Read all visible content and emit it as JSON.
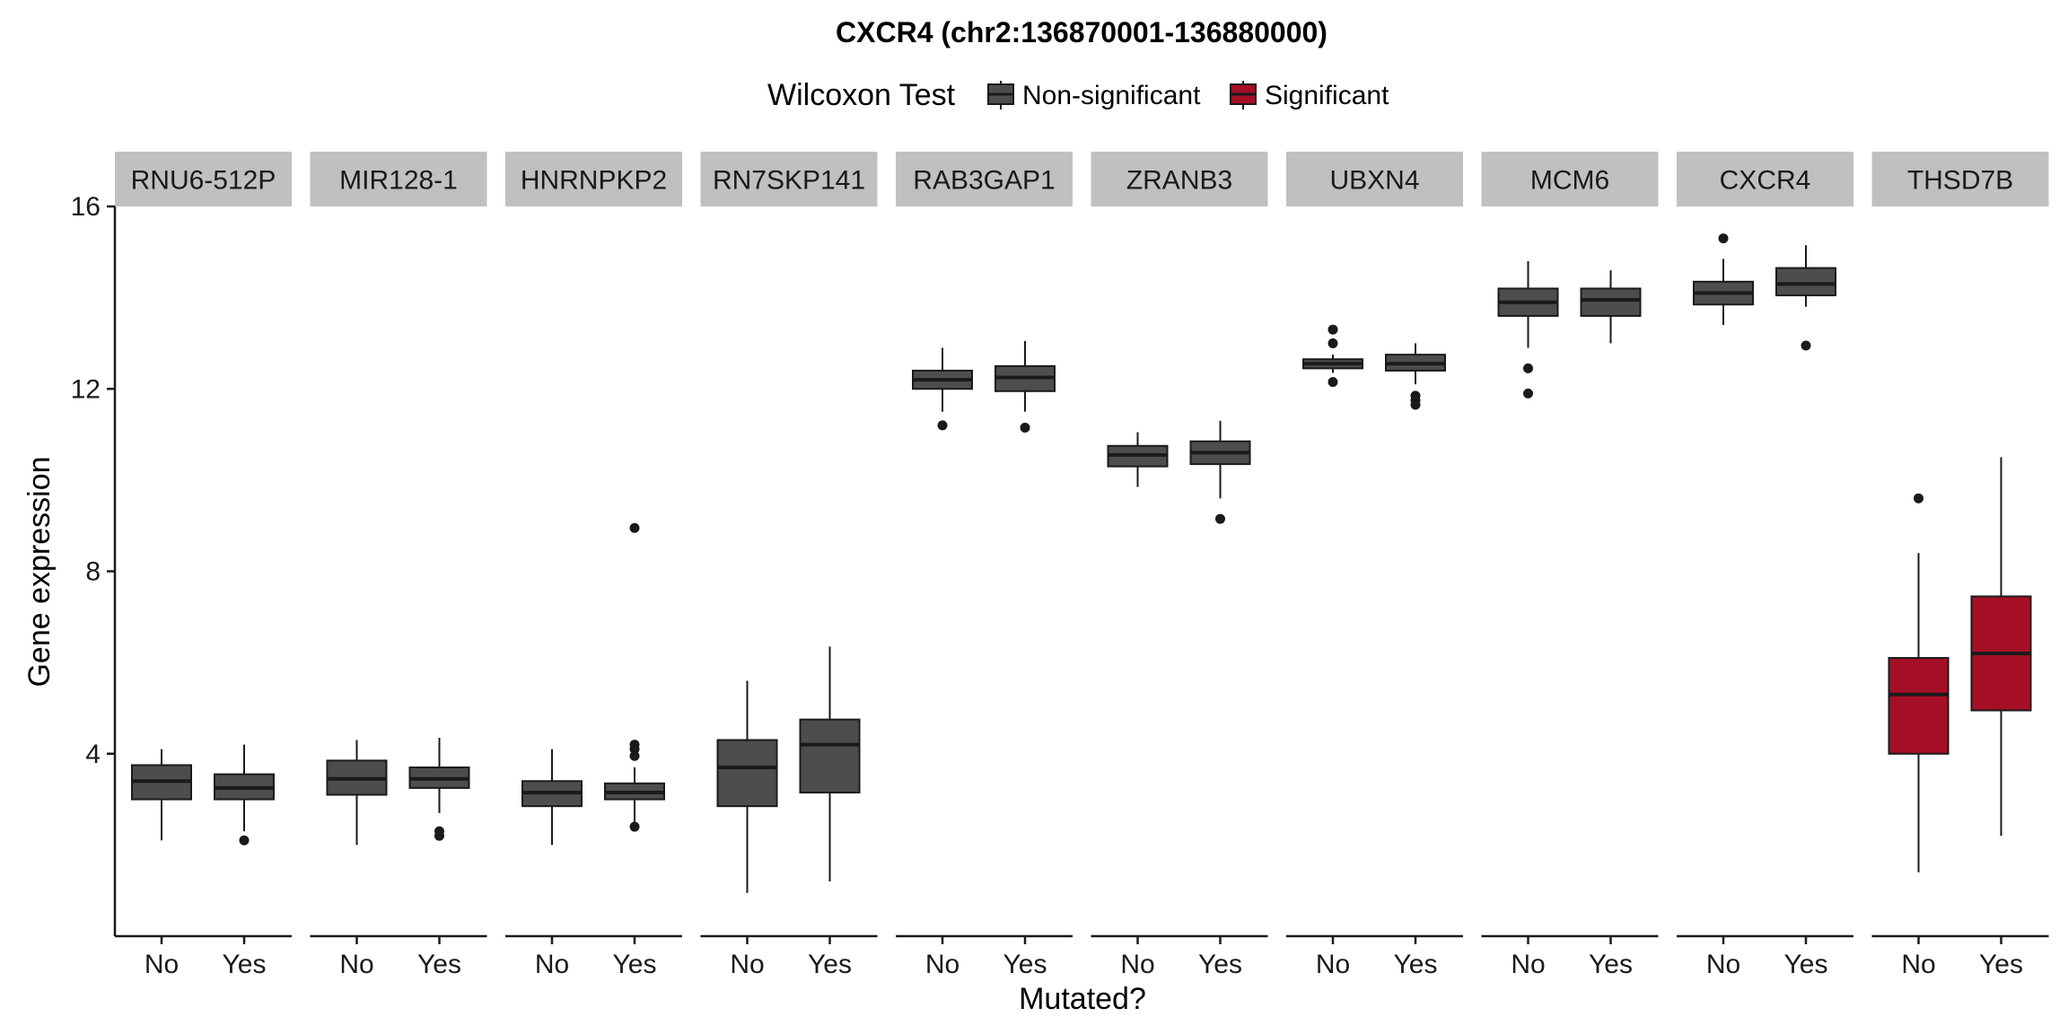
{
  "chart_data": {
    "type": "boxplot",
    "title": "CXCR4 (chr2:136870001-136880000)",
    "xlabel": "Mutated?",
    "ylabel": "Gene expression",
    "ylim": [
      0.0,
      16.0
    ],
    "yticks": [
      4,
      8,
      12,
      16
    ],
    "categories": [
      "No",
      "Yes"
    ],
    "legend": {
      "title": "Wilcoxon Test",
      "position": "top",
      "entries": [
        {
          "label": "Non-significant",
          "color": "#4d4d4d"
        },
        {
          "label": "Significant",
          "color": "#a50f26"
        }
      ]
    },
    "colors": {
      "strip_bg": "#c0c0c0",
      "box_stroke": "#1a1a1a",
      "axis": "#1a1a1a",
      "background": "#ffffff"
    },
    "facets": [
      {
        "gene": "RNU6-512P",
        "significant": false,
        "groups": [
          {
            "group": "No",
            "min": 2.1,
            "q1": 3.0,
            "median": 3.4,
            "q3": 3.75,
            "max": 4.1,
            "outliers": []
          },
          {
            "group": "Yes",
            "min": 2.3,
            "q1": 3.0,
            "median": 3.25,
            "q3": 3.55,
            "max": 4.2,
            "outliers": [
              2.1
            ]
          }
        ]
      },
      {
        "gene": "MIR128-1",
        "significant": false,
        "groups": [
          {
            "group": "No",
            "min": 2.0,
            "q1": 3.1,
            "median": 3.45,
            "q3": 3.85,
            "max": 4.3,
            "outliers": []
          },
          {
            "group": "Yes",
            "min": 2.7,
            "q1": 3.25,
            "median": 3.45,
            "q3": 3.7,
            "max": 4.35,
            "outliers": [
              2.3,
              2.2
            ]
          }
        ]
      },
      {
        "gene": "HNRNPKP2",
        "significant": false,
        "groups": [
          {
            "group": "No",
            "min": 2.0,
            "q1": 2.85,
            "median": 3.15,
            "q3": 3.4,
            "max": 4.1,
            "outliers": []
          },
          {
            "group": "Yes",
            "min": 2.5,
            "q1": 3.0,
            "median": 3.15,
            "q3": 3.35,
            "max": 3.7,
            "outliers": [
              8.95,
              4.2,
              4.1,
              3.95,
              2.4
            ]
          }
        ]
      },
      {
        "gene": "RN7SKP141",
        "significant": false,
        "groups": [
          {
            "group": "No",
            "min": 0.95,
            "q1": 2.85,
            "median": 3.7,
            "q3": 4.3,
            "max": 5.6,
            "outliers": []
          },
          {
            "group": "Yes",
            "min": 1.2,
            "q1": 3.15,
            "median": 4.2,
            "q3": 4.75,
            "max": 6.35,
            "outliers": []
          }
        ]
      },
      {
        "gene": "RAB3GAP1",
        "significant": false,
        "groups": [
          {
            "group": "No",
            "min": 11.5,
            "q1": 12.0,
            "median": 12.2,
            "q3": 12.4,
            "max": 12.9,
            "outliers": [
              11.2
            ]
          },
          {
            "group": "Yes",
            "min": 11.5,
            "q1": 11.95,
            "median": 12.25,
            "q3": 12.5,
            "max": 13.05,
            "outliers": [
              11.15
            ]
          }
        ]
      },
      {
        "gene": "ZRANB3",
        "significant": false,
        "groups": [
          {
            "group": "No",
            "min": 9.85,
            "q1": 10.3,
            "median": 10.55,
            "q3": 10.75,
            "max": 11.05,
            "outliers": []
          },
          {
            "group": "Yes",
            "min": 9.6,
            "q1": 10.35,
            "median": 10.6,
            "q3": 10.85,
            "max": 11.3,
            "outliers": [
              9.15
            ]
          }
        ]
      },
      {
        "gene": "UBXN4",
        "significant": false,
        "groups": [
          {
            "group": "No",
            "min": 12.35,
            "q1": 12.45,
            "median": 12.55,
            "q3": 12.65,
            "max": 12.75,
            "outliers": [
              13.3,
              13.0,
              12.15
            ]
          },
          {
            "group": "Yes",
            "min": 12.1,
            "q1": 12.4,
            "median": 12.55,
            "q3": 12.75,
            "max": 13.0,
            "outliers": [
              11.85,
              11.75,
              11.65
            ]
          }
        ]
      },
      {
        "gene": "MCM6",
        "significant": false,
        "groups": [
          {
            "group": "No",
            "min": 12.9,
            "q1": 13.6,
            "median": 13.9,
            "q3": 14.2,
            "max": 14.8,
            "outliers": [
              12.45,
              11.9
            ]
          },
          {
            "group": "Yes",
            "min": 13.0,
            "q1": 13.6,
            "median": 13.95,
            "q3": 14.2,
            "max": 14.6,
            "outliers": []
          }
        ]
      },
      {
        "gene": "CXCR4",
        "significant": false,
        "groups": [
          {
            "group": "No",
            "min": 13.4,
            "q1": 13.85,
            "median": 14.1,
            "q3": 14.35,
            "max": 14.85,
            "outliers": [
              15.3
            ]
          },
          {
            "group": "Yes",
            "min": 13.8,
            "q1": 14.05,
            "median": 14.3,
            "q3": 14.65,
            "max": 15.15,
            "outliers": [
              12.95
            ]
          }
        ]
      },
      {
        "gene": "THSD7B",
        "significant": true,
        "groups": [
          {
            "group": "No",
            "min": 1.4,
            "q1": 4.0,
            "median": 5.3,
            "q3": 6.1,
            "max": 8.4,
            "outliers": [
              9.6
            ]
          },
          {
            "group": "Yes",
            "min": 2.2,
            "q1": 4.95,
            "median": 6.2,
            "q3": 7.45,
            "max": 10.5,
            "outliers": []
          }
        ]
      }
    ]
  }
}
